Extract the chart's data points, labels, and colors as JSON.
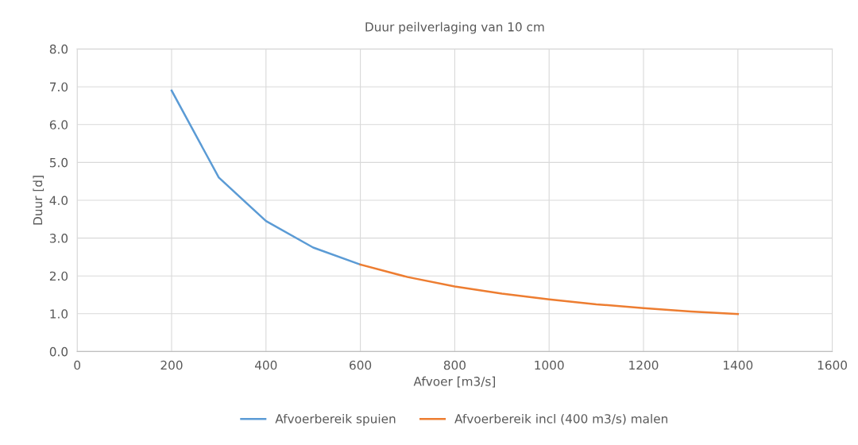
{
  "chart_data": {
    "type": "line",
    "title": "Duur peilverlaging van 10 cm",
    "xlabel": "Afvoer [m3/s]",
    "ylabel": "Duur [d]",
    "series": [
      {
        "name": "Afvoerbereik spuien",
        "color": "#5b9bd5",
        "x": [
          200,
          300,
          400,
          500,
          600
        ],
        "values": [
          6.9,
          4.6,
          3.45,
          2.75,
          2.3
        ]
      },
      {
        "name": "Afvoerbereik incl (400 m3/s) malen",
        "color": "#ed7d31",
        "x": [
          600,
          700,
          800,
          900,
          1000,
          1100,
          1200,
          1300,
          1400
        ],
        "values": [
          2.3,
          1.97,
          1.72,
          1.53,
          1.38,
          1.25,
          1.15,
          1.06,
          0.99
        ]
      }
    ],
    "xlim": [
      0,
      1600
    ],
    "xticks": [
      0,
      200,
      400,
      600,
      800,
      1000,
      1200,
      1400,
      1600
    ],
    "ylim": [
      0,
      8
    ],
    "yticks": [
      {
        "value": 0,
        "label": "0.0"
      },
      {
        "value": 1,
        "label": "1.0"
      },
      {
        "value": 2,
        "label": "2.0"
      },
      {
        "value": 3,
        "label": "3.0"
      },
      {
        "value": 4,
        "label": "4.0"
      },
      {
        "value": 5,
        "label": "5.0"
      },
      {
        "value": 6,
        "label": "6.0"
      },
      {
        "value": 7,
        "label": "7.0"
      },
      {
        "value": 8,
        "label": "8.0"
      }
    ],
    "grid": true,
    "legend": "bottom"
  }
}
